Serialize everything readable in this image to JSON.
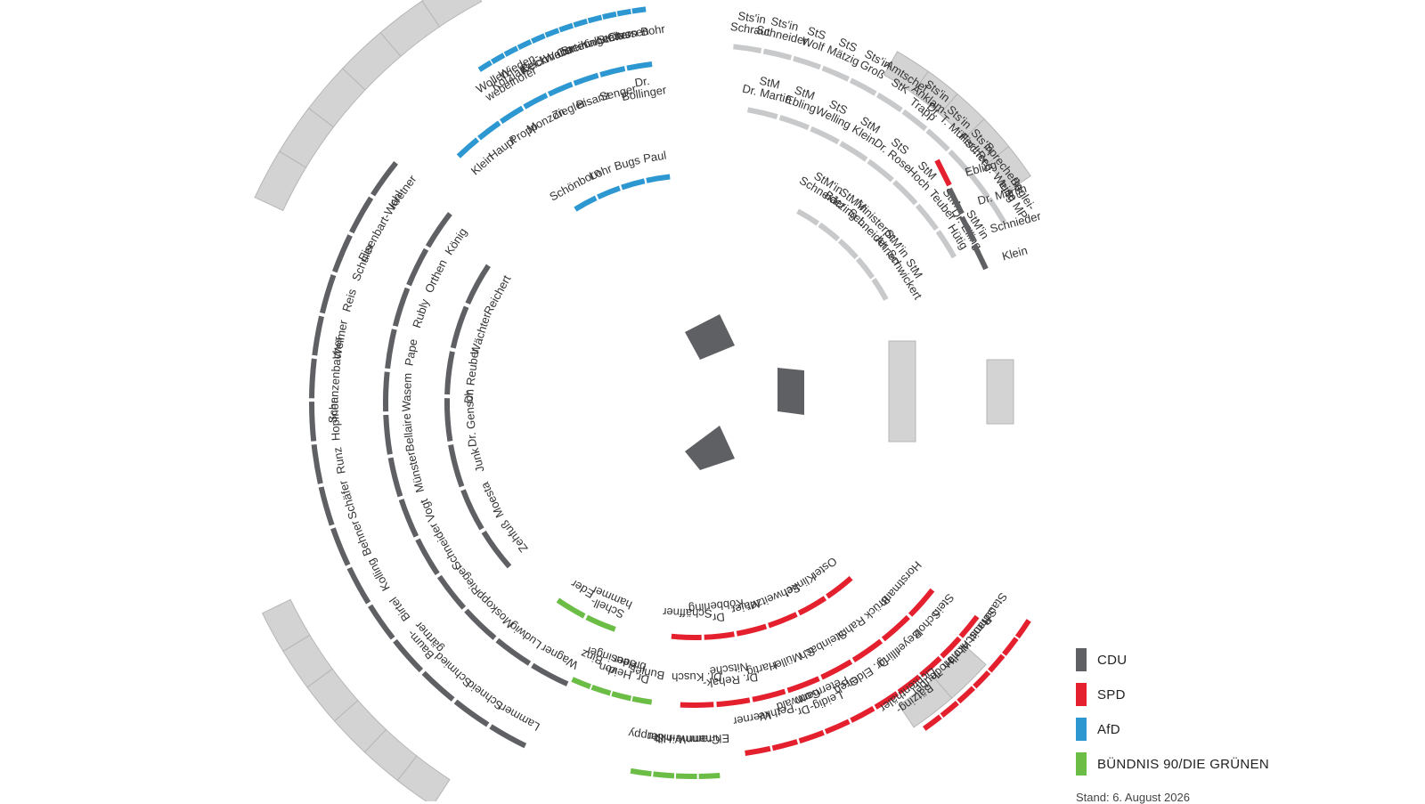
{
  "colors": {
    "CDU": "#5f6064",
    "SPD": "#e4202e",
    "AfD": "#2c97d1",
    "GRUENE": "#6bbd45",
    "GOV": "#c8c9cb",
    "BOX_FILL": "#d3d3d4",
    "BOX_STROKE": "#b5b6b8",
    "PODIUM": "#5f6064"
  },
  "legend": [
    {
      "label": "CDU",
      "color": "#5f6064"
    },
    {
      "label": "SPD",
      "color": "#e4202e"
    },
    {
      "label": "AfD",
      "color": "#2c97d1"
    },
    {
      "label": "BÜNDNIS 90/DIE GRÜNEN",
      "color": "#6bbd45"
    }
  ],
  "stand": "Stand: 6. August 2026",
  "rows": {
    "cdu_outer": [
      "Kretner",
      "Eisenbart-Wahl",
      "Schuler",
      "Reis",
      "Weimer",
      "Schanzenbacher",
      "Hopfner",
      "Runz",
      "Schäfer",
      "Behner",
      "Kolling",
      "Birtel",
      "Baum-|gärtner",
      "Schmied",
      "Schneid",
      "Lammert"
    ],
    "cdu_middle": [
      "König",
      "Orthen",
      "Rubly",
      "Pape",
      "Wasem",
      "Bellaire",
      "Münster",
      "Vogt",
      "Schneider",
      "Rieger",
      "Moskopp",
      "Ludwig",
      "Wagner"
    ],
    "cdu_inner": [
      "Reichert",
      "Wächter",
      "Dr. Reuber",
      "Dr. Gensch",
      "Junk",
      "Moesta",
      "Zehfuß"
    ],
    "gruene_inner": [
      "Eder",
      "Schell-|hammer"
    ],
    "gruene_middle": [
      "Binz",
      "von|Heusinger",
      "Dr. Heid-|breder",
      "Bunjes"
    ],
    "gruene_outer": [
      "Stuppy",
      "Winkler",
      "Cramme-Hilt",
      "Ehmann"
    ],
    "spd_inner": [
      "Schäffner",
      "Dr.|Köbberling",
      "Maier",
      "Schweitzer",
      "Klinkel",
      "Oster"
    ],
    "spd_middle": [
      "Dr. Kusch",
      "Dr. Rehak-|Nitsche",
      "Hartig",
      "S. Müller",
      "Steinbach",
      "Rahm",
      "Brück",
      "Horstmann"
    ],
    "spd_r3": [
      "Werner",
      "Pethke",
      "Dr.|Gottwald",
      "Leidig-|Petermann",
      "Greb",
      "Dr. Elder",
      "Illing",
      "Beyer",
      "Scholz",
      "Stein"
    ],
    "spd_r4": [
      "Bätzing-|Lichtenthäler",
      "Teuber",
      "Hoch",
      "Ahnen",
      "Rauschkolb",
      "Schmitt",
      "Stauch"
    ],
    "afd_outer": [
      "Wollen-|weber",
      "Kotzian",
      "Wieden-|hofer",
      "Kelch",
      "Beckmann",
      "Weber",
      "Curten",
      "Breininger",
      "Kallweit",
      "Stritter",
      "Classen",
      "von Bohr"
    ],
    "afd_middle": [
      "Klein",
      "Haupt",
      "Propp",
      "Monzon",
      "Ziegler",
      "Bisanz",
      "Senger",
      "Dr.|Bollinger"
    ],
    "afd_inner": [
      "Schönborn",
      "Lohr",
      "Bugs",
      "Paul"
    ],
    "gov_r4": [
      "Sts'in|Schraut",
      "Sts'in|Schneider",
      "StS|Wolf",
      "StS|Mätzig",
      "Sts'in|Groß",
      "Amtschef|StK",
      "Sts'in|Anklam-|Trapp",
      "Sts'in|Dr. T. Müller",
      "Sts'in|Fischer",
      "Sprecherin|LReg. Weise",
      "Beglei-|tung MP"
    ],
    "gov_r3": [
      "StM|Dr. Martin",
      "StM|Ebling",
      "StS|Welling",
      "StM|Klein",
      "StS|Dr. Rose",
      "StM|Hoch",
      "StM|Teuber",
      "StM'in|Dr. Eiling-|Hütig"
    ],
    "gov_r2": [
      "StM'in|Schneider",
      "StM'in|Bätzing-L.",
      "Ministerpr.|Schneider",
      "StM'in|Ahnen",
      "StM|Schwickert"
    ],
    "bench_right": [
      "Ebling",
      "Dr. Martin",
      "Schnieder",
      "Klein"
    ]
  }
}
